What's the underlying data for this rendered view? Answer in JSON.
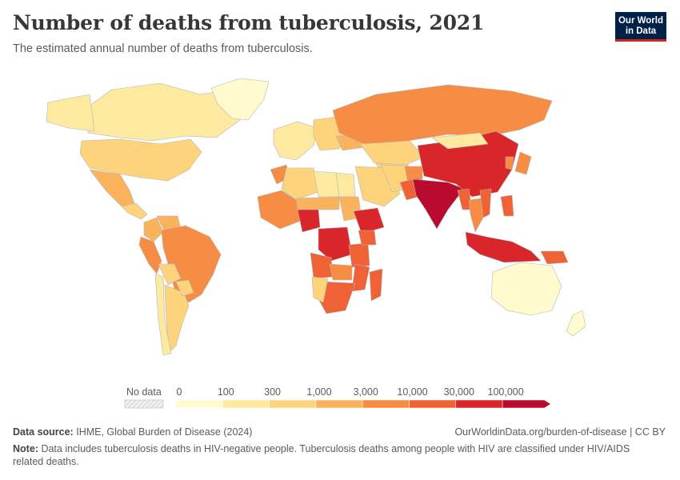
{
  "header": {
    "title": "Number of deaths from tuberculosis, 2021",
    "subtitle": "The estimated annual number of deaths from tuberculosis.",
    "logo_line1": "Our World",
    "logo_line2": "in Data"
  },
  "colors": {
    "no_data": "#eeeeee",
    "bins": [
      "#fffbcf",
      "#fee9a1",
      "#fdd37c",
      "#fbb25d",
      "#f78d45",
      "#ee6236",
      "#d9262a",
      "#b80b2e"
    ],
    "border": "#b5b5b5",
    "logo_bg": "#002147",
    "logo_accent": "#ce261e"
  },
  "legend": {
    "no_data_label": "No data",
    "tick_labels": [
      "0",
      "100",
      "300",
      "1,000",
      "3,000",
      "10,000",
      "30,000",
      "100,000"
    ]
  },
  "map_data": {
    "variable": "Deaths from tuberculosis",
    "year": "2021",
    "regions": [
      {
        "name": "Canada",
        "bin": 1
      },
      {
        "name": "Alaska",
        "bin": 1
      },
      {
        "name": "Greenland",
        "bin": 0
      },
      {
        "name": "United States",
        "bin": 2
      },
      {
        "name": "Mexico",
        "bin": 3
      },
      {
        "name": "Central America",
        "bin": 2
      },
      {
        "name": "Colombia",
        "bin": 3
      },
      {
        "name": "Venezuela",
        "bin": 3
      },
      {
        "name": "Peru",
        "bin": 4
      },
      {
        "name": "Brazil",
        "bin": 4
      },
      {
        "name": "Bolivia",
        "bin": 2
      },
      {
        "name": "Argentina",
        "bin": 2
      },
      {
        "name": "Chile",
        "bin": 1
      },
      {
        "name": "Paraguay",
        "bin": 2
      },
      {
        "name": "Western Europe",
        "bin": 1
      },
      {
        "name": "Eastern Europe",
        "bin": 2
      },
      {
        "name": "Ukraine",
        "bin": 3
      },
      {
        "name": "Russia",
        "bin": 4
      },
      {
        "name": "Kazakhstan",
        "bin": 2
      },
      {
        "name": "Central Asia",
        "bin": 2
      },
      {
        "name": "Morocco",
        "bin": 4
      },
      {
        "name": "Algeria",
        "bin": 2
      },
      {
        "name": "Libya",
        "bin": 1
      },
      {
        "name": "Egypt",
        "bin": 1
      },
      {
        "name": "Middle East",
        "bin": 2
      },
      {
        "name": "Iran",
        "bin": 2
      },
      {
        "name": "Afghanistan",
        "bin": 4
      },
      {
        "name": "Pakistan",
        "bin": 5
      },
      {
        "name": "India",
        "bin": 7
      },
      {
        "name": "China",
        "bin": 6
      },
      {
        "name": "Mongolia",
        "bin": 1
      },
      {
        "name": "Japan",
        "bin": 4
      },
      {
        "name": "Korea",
        "bin": 4
      },
      {
        "name": "Myanmar",
        "bin": 5
      },
      {
        "name": "Thailand",
        "bin": 4
      },
      {
        "name": "Vietnam",
        "bin": 5
      },
      {
        "name": "Philippines",
        "bin": 5
      },
      {
        "name": "Indonesia",
        "bin": 6
      },
      {
        "name": "Papua New Guinea",
        "bin": 5
      },
      {
        "name": "Australia",
        "bin": 0
      },
      {
        "name": "New Zealand",
        "bin": 0
      },
      {
        "name": "West Africa",
        "bin": 4
      },
      {
        "name": "Nigeria",
        "bin": 6
      },
      {
        "name": "Sahel",
        "bin": 3
      },
      {
        "name": "Sudan",
        "bin": 3
      },
      {
        "name": "Ethiopia",
        "bin": 6
      },
      {
        "name": "DR Congo",
        "bin": 6
      },
      {
        "name": "Angola",
        "bin": 5
      },
      {
        "name": "Tanzania",
        "bin": 5
      },
      {
        "name": "Kenya",
        "bin": 5
      },
      {
        "name": "Zambia",
        "bin": 4
      },
      {
        "name": "Mozambique",
        "bin": 5
      },
      {
        "name": "Madagascar",
        "bin": 5
      },
      {
        "name": "South Africa",
        "bin": 5
      },
      {
        "name": "Namibia",
        "bin": 2
      }
    ]
  },
  "footer": {
    "source_label": "Data source:",
    "source_text": "IHME, Global Burden of Disease (2024)",
    "url_text": "OurWorldinData.org/burden-of-disease | CC BY",
    "note_label": "Note:",
    "note_text": "Data includes tuberculosis deaths in HIV-negative people. Tuberculosis deaths among people with HIV are classified under HIV/AIDS related deaths."
  }
}
